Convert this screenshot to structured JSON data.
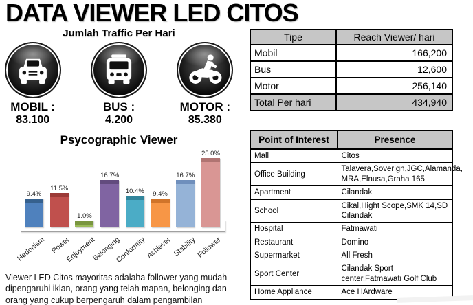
{
  "title": "DATA VIEWER LED CITOS",
  "traffic": {
    "heading": "Jumlah Traffic Per Hari",
    "items": [
      {
        "icon": "car-icon",
        "label": "MOBIL :",
        "value": "83.100"
      },
      {
        "icon": "bus-icon",
        "label": "BUS :",
        "value": "4.200"
      },
      {
        "icon": "motorcycle-icon",
        "label": "MOTOR :",
        "value": "85.380"
      }
    ]
  },
  "reach_table": {
    "headers": [
      "Tipe",
      "Reach Viewer/ hari"
    ],
    "rows": [
      [
        "Mobil",
        "166,200"
      ],
      [
        "Bus",
        "12,600"
      ],
      [
        "Motor",
        "256,140"
      ]
    ],
    "total": [
      "Total Per hari",
      "434,940"
    ]
  },
  "chart_data": {
    "type": "bar",
    "title": "Psycographic Viewer",
    "categories": [
      "Hedonism",
      "Power",
      "Enjoyment",
      "Belonging",
      "Conformity",
      "Achiever",
      "Stability",
      "Follower"
    ],
    "values": [
      9.4,
      11.5,
      1.0,
      16.7,
      10.4,
      9.4,
      16.7,
      25.0
    ],
    "labels": [
      "9.4%",
      "11.5%",
      "1.0%",
      "16.7%",
      "10.4%",
      "9.4%",
      "16.7%",
      "25.0%"
    ],
    "colors": [
      "#4f81bd",
      "#c0504d",
      "#9bbb59",
      "#8064a2",
      "#4bacc6",
      "#f79646",
      "#95b3d7",
      "#d99694"
    ],
    "cap_colors": [
      "#36618e",
      "#9c3a37",
      "#7a9640",
      "#624b7e",
      "#31859b",
      "#d0742a",
      "#6f8fbc",
      "#b07472"
    ],
    "xlabel": "",
    "ylabel": "",
    "ylim": [
      0,
      27
    ],
    "grid": false,
    "legend": "none",
    "data_labels": true
  },
  "poi_table": {
    "headers": [
      "Point of Interest",
      "Presence"
    ],
    "rows": [
      [
        "Mall",
        "Citos"
      ],
      [
        "Office Building",
        "Talavera,Soverign,JGC,Alamanda, MRA,Elnusa,Graha 165"
      ],
      [
        "Apartment",
        "Cilandak"
      ],
      [
        "School",
        "Cikal,Hight Scope,SMK 14,SD Cilandak"
      ],
      [
        "Hospital",
        "Fatmawati"
      ],
      [
        "Restaurant",
        "Domino"
      ],
      [
        "Supermarket",
        "All Fresh"
      ],
      [
        "Sport Center",
        "Cilandak Sport center,Fatmawati Golf Club"
      ],
      [
        "Home Appliance",
        "Ace HArdware"
      ]
    ]
  },
  "summary": "Viewer LED Citos mayoritas adalaha follower yang mudah dipengaruhi iklan, orang yang telah mapan, belonging dan orang yang cukup berpengaruh dalam pengambilan keputusan",
  "colors": {
    "table_header_bg": "#c6c6c6",
    "table_border": "#000000",
    "background": "#ffffff",
    "text": "#000000"
  }
}
